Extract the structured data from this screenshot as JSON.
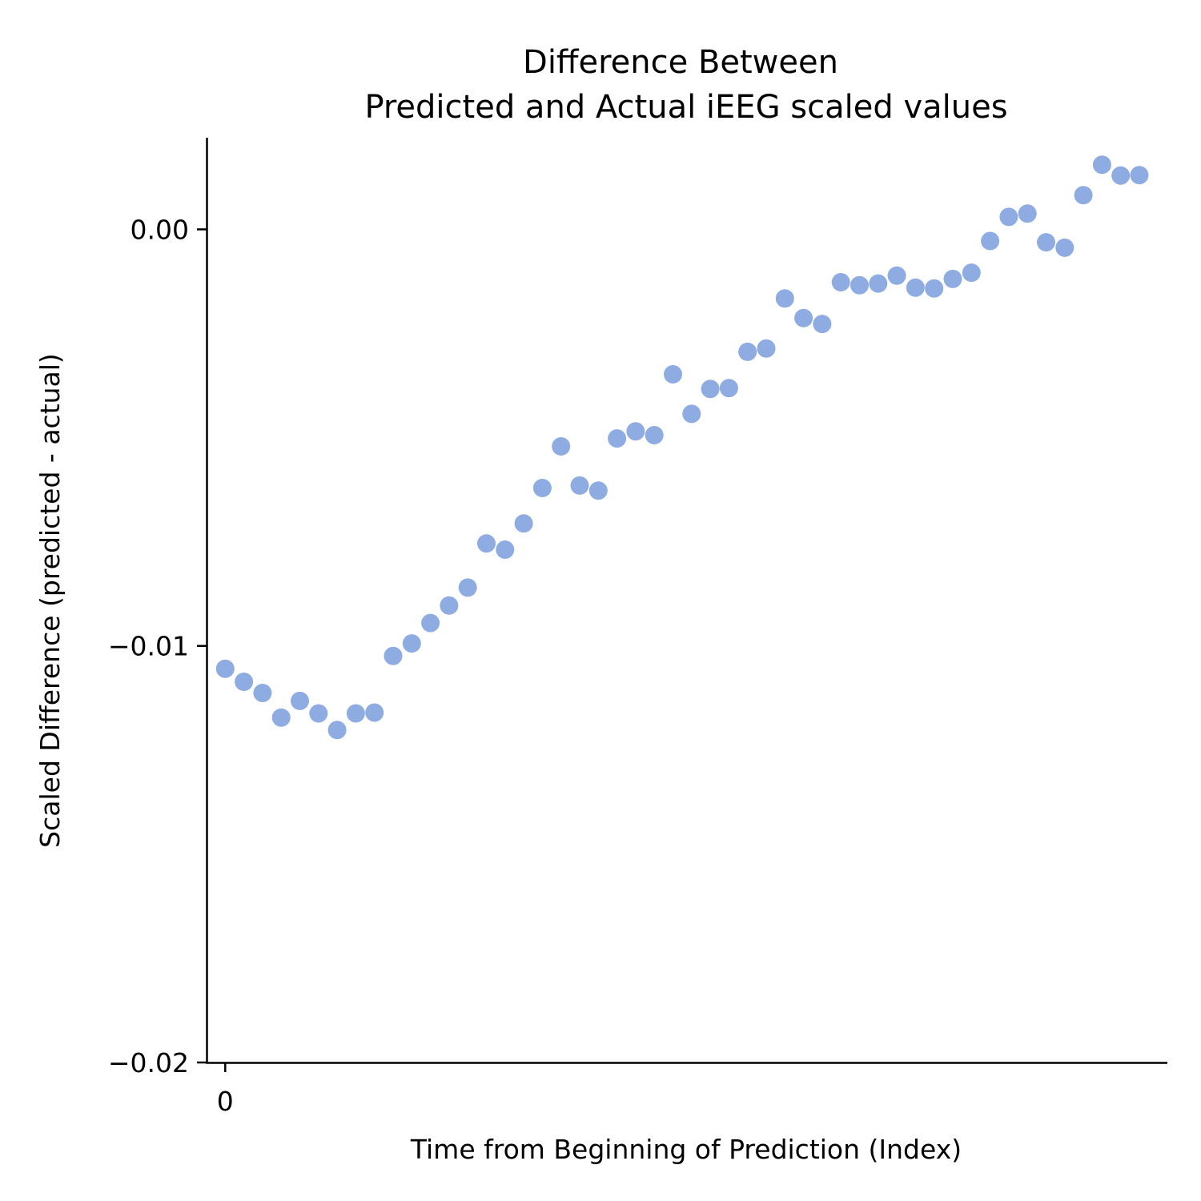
{
  "chart_data": {
    "type": "scatter",
    "title_lines": [
      "Difference Between",
      "Predicted and Actual iEEG scaled values"
    ],
    "xlabel": "Time from Beginning of Prediction (Index)",
    "ylabel": "Scaled Difference (predicted - actual)",
    "xlim": [
      -1,
      50.5
    ],
    "ylim": [
      -0.02,
      0.0022
    ],
    "yticks": [
      {
        "value": 0.0,
        "label": "0.00"
      },
      {
        "value": -0.01,
        "label": "−0.01"
      },
      {
        "value": -0.02,
        "label": "−0.02"
      }
    ],
    "xticks": [
      {
        "value": 0,
        "label": "0"
      }
    ],
    "grid": false,
    "marker_color": "#8eabe2",
    "x": [
      0,
      1,
      2,
      3,
      4,
      5,
      6,
      7,
      8,
      9,
      10,
      11,
      12,
      13,
      14,
      15,
      16,
      17,
      18,
      19,
      20,
      21,
      22,
      23,
      24,
      25,
      26,
      27,
      28,
      29,
      30,
      31,
      32,
      33,
      34,
      35,
      36,
      37,
      38,
      39,
      40,
      41,
      42,
      43,
      44,
      45,
      46,
      47,
      48,
      49
    ],
    "y": [
      -0.01055,
      -0.01086,
      -0.01113,
      -0.01172,
      -0.01132,
      -0.01162,
      -0.01202,
      -0.01162,
      -0.0116,
      -0.01024,
      -0.00994,
      -0.00945,
      -0.00903,
      -0.0086,
      -0.00754,
      -0.00769,
      -0.00706,
      -0.00621,
      -0.00521,
      -0.00615,
      -0.00627,
      -0.00502,
      -0.00485,
      -0.00494,
      -0.00348,
      -0.00443,
      -0.00383,
      -0.00381,
      -0.00294,
      -0.00286,
      -0.00166,
      -0.00213,
      -0.00227,
      -0.00127,
      -0.00134,
      -0.0013,
      -0.00111,
      -0.0014,
      -0.00142,
      -0.00119,
      -0.00104,
      -0.00028,
      0.0003,
      0.00038,
      -0.00031,
      -0.00044,
      0.00082,
      0.00155,
      0.00129,
      0.0013
    ]
  }
}
